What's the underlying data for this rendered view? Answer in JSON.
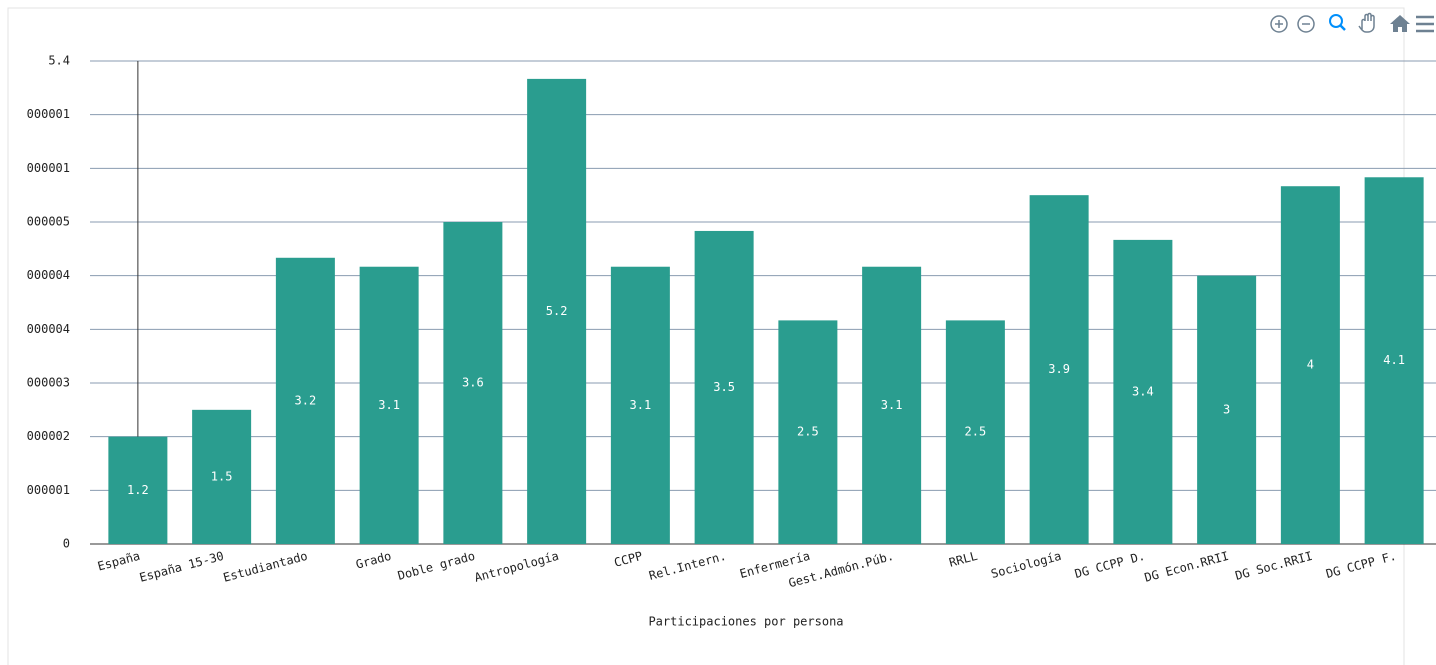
{
  "chart_data": {
    "type": "bar",
    "x_label": "Participaciones por persona",
    "categories": [
      "España",
      "España 15-30",
      "Estudiantado",
      "Grado",
      "Doble grado",
      "Antropología",
      "CCPP",
      "Rel.Intern.",
      "Enfermería",
      "Gest.Admón.Púb.",
      "RRLL",
      "Sociología",
      "DG CCPP D.",
      "DG Econ.RRII",
      "DG Soc.RRII",
      "DG CCPP F."
    ],
    "values": [
      1.2,
      1.5,
      3.2,
      3.1,
      3.6,
      5.2,
      3.1,
      3.5,
      2.5,
      3.1,
      2.5,
      3.9,
      3.4,
      3,
      4,
      4.1
    ],
    "color": "#2a9d8f",
    "ylim": [
      0,
      5.4
    ],
    "yticks": [
      0,
      {
        "value": 0.6,
        "label": "000001"
      },
      {
        "value": 1.2,
        "label": "000002"
      },
      {
        "value": 1.8,
        "label": "000003"
      },
      {
        "value": 2.4,
        "label": "000004"
      },
      {
        "value": 3.0,
        "label": "000004"
      },
      {
        "value": 3.6,
        "label": "000005"
      },
      {
        "value": 4.2,
        "label": "000001"
      },
      {
        "value": 4.8,
        "label": "000001"
      },
      5.4
    ],
    "grid": true
  }
}
